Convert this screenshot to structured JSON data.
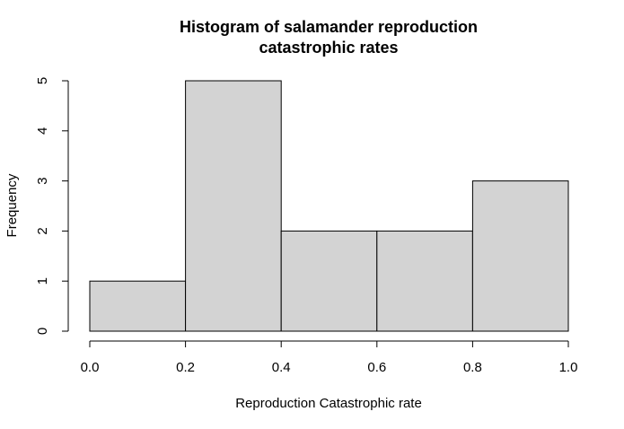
{
  "chart_data": {
    "type": "bar",
    "title_lines": [
      "Histogram of salamander reproduction",
      "catastrophic rates"
    ],
    "xlabel": "Reproduction Catastrophic rate",
    "ylabel": "Frequency",
    "bins": [
      {
        "from": 0.0,
        "to": 0.2,
        "count": 1
      },
      {
        "from": 0.2,
        "to": 0.4,
        "count": 5
      },
      {
        "from": 0.4,
        "to": 0.6,
        "count": 2
      },
      {
        "from": 0.6,
        "to": 0.8,
        "count": 2
      },
      {
        "from": 0.8,
        "to": 1.0,
        "count": 3
      }
    ],
    "x_ticks": [
      "0.0",
      "0.2",
      "0.4",
      "0.6",
      "0.8",
      "1.0"
    ],
    "y_ticks": [
      "0",
      "1",
      "2",
      "3",
      "4",
      "5"
    ],
    "xlim": [
      0,
      1
    ],
    "ylim": [
      0,
      5
    ],
    "bar_fill": "#d3d3d3",
    "bar_stroke": "#000000",
    "grid": false
  }
}
